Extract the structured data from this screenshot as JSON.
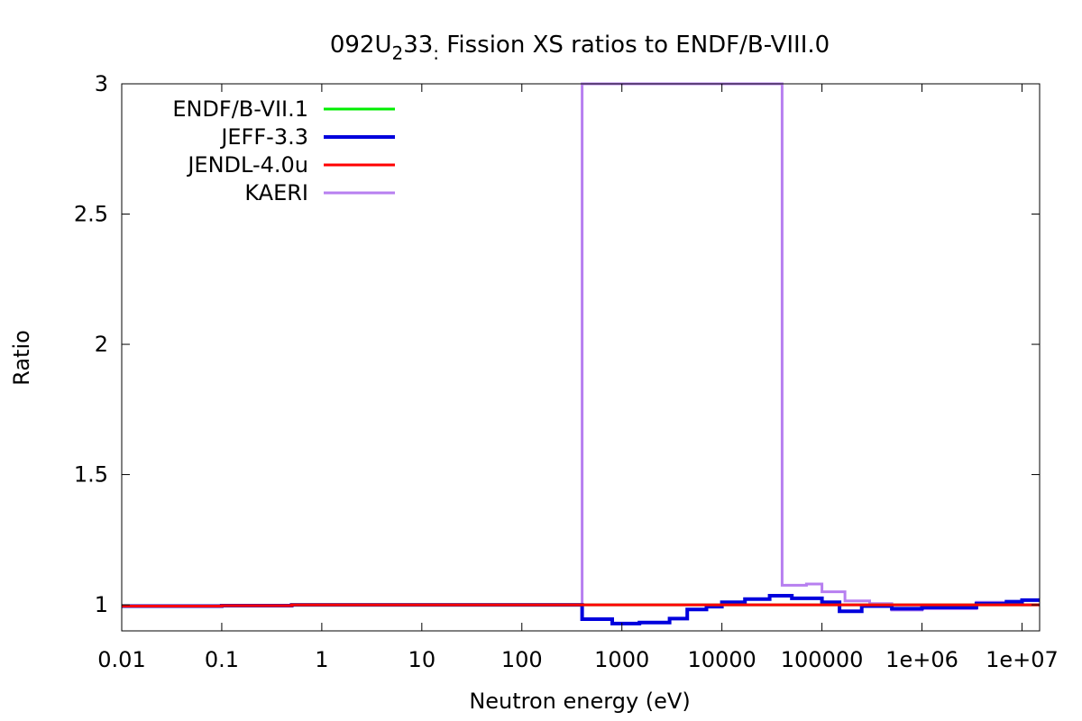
{
  "chart_data": {
    "type": "line",
    "title": {
      "prefix": "092U",
      "sub1": "2",
      "mid": "33",
      "sub2": ":",
      "suffix": " Fission XS ratios to ENDF/B-VIII.0"
    },
    "xlabel": "Neutron energy (eV)",
    "ylabel": "Ratio",
    "xscale": "log",
    "xlim": [
      0.01,
      15000000
    ],
    "ylim": [
      0.9,
      3
    ],
    "xticks": [
      {
        "value": 0.01,
        "label": "0.01"
      },
      {
        "value": 0.1,
        "label": "0.1"
      },
      {
        "value": 1,
        "label": "1"
      },
      {
        "value": 10,
        "label": "10"
      },
      {
        "value": 100,
        "label": "100"
      },
      {
        "value": 1000,
        "label": "1000"
      },
      {
        "value": 10000,
        "label": "10000"
      },
      {
        "value": 100000,
        "label": "100000"
      },
      {
        "value": 1000000,
        "label": "1e+06"
      },
      {
        "value": 10000000,
        "label": "1e+07"
      }
    ],
    "yticks": [
      {
        "value": 1,
        "label": "1"
      },
      {
        "value": 1.5,
        "label": "1.5"
      },
      {
        "value": 2,
        "label": "2"
      },
      {
        "value": 2.5,
        "label": "2.5"
      },
      {
        "value": 3,
        "label": "3"
      }
    ],
    "grid": false,
    "legend_position": "top-left",
    "series": [
      {
        "name": "ENDF/B-VII.1",
        "color": "#00ee00",
        "width": 3,
        "step": true,
        "points": [
          [
            0.01,
            0.995
          ],
          [
            0.1,
            0.997
          ],
          [
            0.5,
            1.0
          ],
          [
            400,
            1.0
          ],
          [
            15000000,
            1.0
          ]
        ]
      },
      {
        "name": "JEFF-3.3",
        "color": "#0000dd",
        "width": 4,
        "step": true,
        "points": [
          [
            0.01,
            0.995
          ],
          [
            0.1,
            0.997
          ],
          [
            0.5,
            1.0
          ],
          [
            400,
            0.945
          ],
          [
            800,
            0.928
          ],
          [
            1500,
            0.932
          ],
          [
            3000,
            0.947
          ],
          [
            4500,
            0.982
          ],
          [
            7000,
            0.993
          ],
          [
            10000,
            1.01
          ],
          [
            17000,
            1.022
          ],
          [
            30000,
            1.035
          ],
          [
            50000,
            1.025
          ],
          [
            100000,
            1.01
          ],
          [
            150000,
            0.975
          ],
          [
            250000,
            0.995
          ],
          [
            500000,
            0.985
          ],
          [
            1000000,
            0.99
          ],
          [
            2000000,
            0.99
          ],
          [
            3500000,
            1.005
          ],
          [
            7000000,
            1.012
          ],
          [
            10000000,
            1.018
          ],
          [
            15000000,
            1.018
          ]
        ]
      },
      {
        "name": "JENDL-4.0u",
        "color": "#ff0000",
        "width": 3,
        "step": true,
        "points": [
          [
            0.01,
            0.995
          ],
          [
            0.1,
            0.997
          ],
          [
            0.5,
            1.0
          ],
          [
            400,
            1.0
          ],
          [
            15000000,
            1.0
          ]
        ]
      },
      {
        "name": "KAERI",
        "color": "#b77ff0",
        "width": 3,
        "step": true,
        "points": [
          [
            0.01,
            0.995
          ],
          [
            0.1,
            0.997
          ],
          [
            0.5,
            1.0
          ],
          [
            400,
            3.05
          ],
          [
            40000,
            1.075
          ],
          [
            70000,
            1.08
          ],
          [
            100000,
            1.05
          ],
          [
            170000,
            1.015
          ],
          [
            300000,
            1.005
          ],
          [
            500000,
            0.98
          ],
          [
            1000000,
            0.985
          ],
          [
            2000000,
            0.985
          ],
          [
            3500000,
            1.01
          ],
          [
            10000000,
            1.0
          ],
          [
            15000000,
            1.0
          ]
        ]
      }
    ]
  }
}
